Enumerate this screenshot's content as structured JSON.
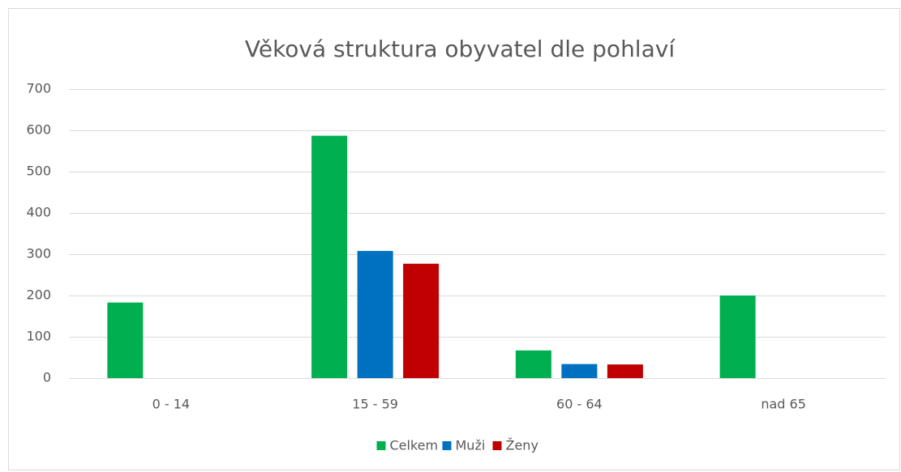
{
  "chart_data": {
    "type": "bar",
    "title": "Věková struktura obyvatel dle pohlaví",
    "categories": [
      "0 - 14",
      "15 - 59",
      "60 - 64",
      "nad 65"
    ],
    "series": [
      {
        "name": "Celkem",
        "color": "#00b050",
        "values": [
          183,
          587,
          67,
          200
        ]
      },
      {
        "name": "Muži",
        "color": "#0070c0",
        "values": [
          null,
          308,
          34,
          null
        ]
      },
      {
        "name": "Ženy",
        "color": "#c00000",
        "values": [
          null,
          277,
          33,
          null
        ]
      }
    ],
    "ylim": [
      0,
      700
    ],
    "yticks": [
      0,
      100,
      200,
      300,
      400,
      500,
      600,
      700
    ],
    "grid": true,
    "legend": "bottom"
  }
}
